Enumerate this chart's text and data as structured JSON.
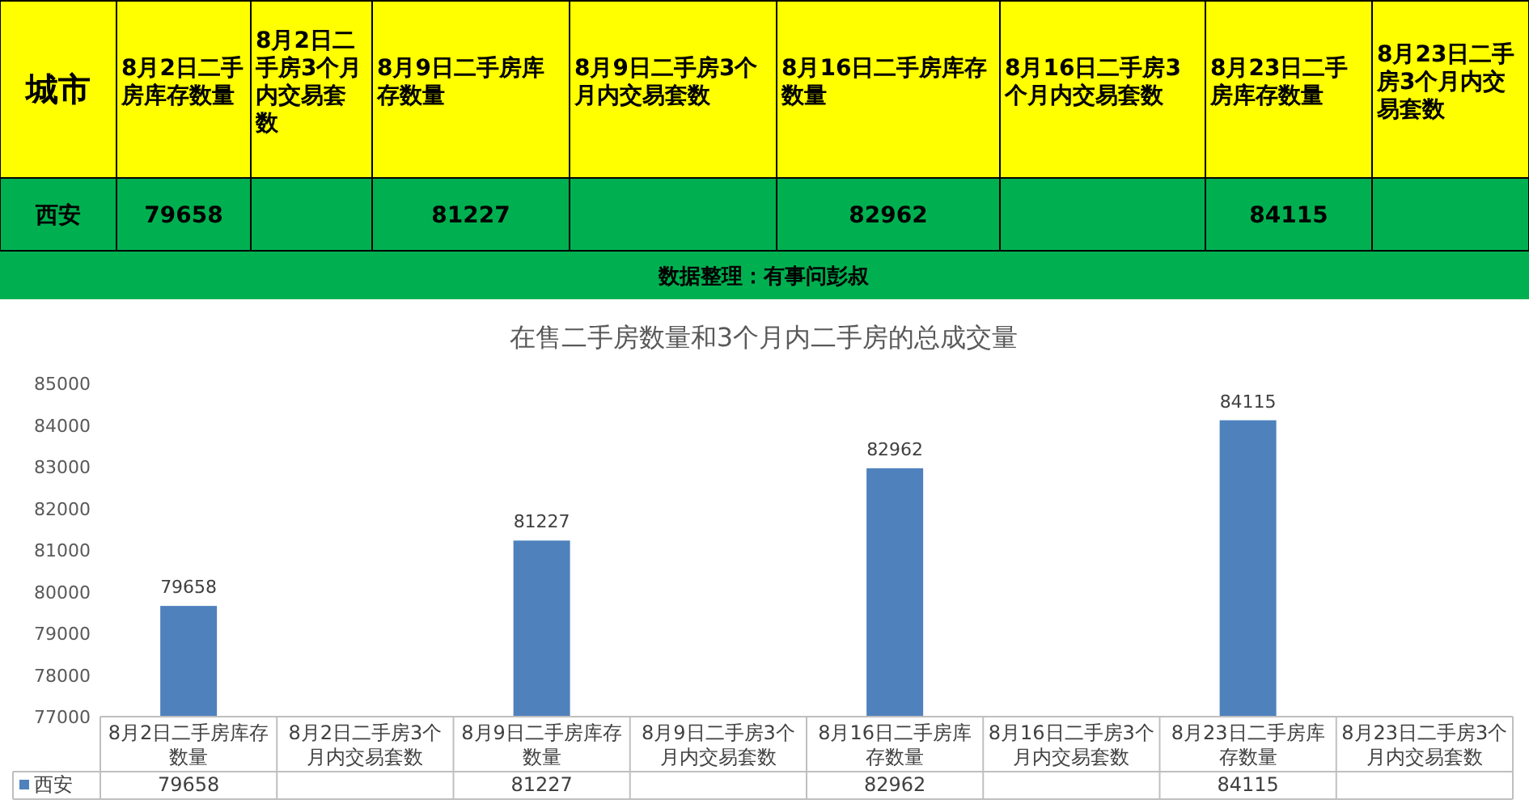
{
  "chart_data": [
    {
      "type": "other",
      "ylabel": "城市",
      "categories": [
        "8月2日二手房库存数量",
        "8月2日二手房3个月内交易套数",
        "8月9日二手房库存数量",
        "8月9日二手房3个月内交易套数",
        "8月16日二手房库存数量",
        "8月16日二手房3个月内交易套数",
        "8月23日二手房库存数量",
        "8月23日二手房3个月内交易套数"
      ],
      "y_categories": [
        "西安"
      ],
      "cell_labels": [
        [
          "79658",
          null,
          "81227",
          null,
          "82962",
          null,
          "84115",
          null
        ]
      ],
      "annotations": [
        "数据整理：有事问彭叔"
      ]
    },
    {
      "type": "bar",
      "title": "在售二手房数量和3个月内二手房的总成交量",
      "categories": [
        "8月2日二手房库存数量",
        "8月2日二手房3个月内交易套数",
        "8月9日二手房库存数量",
        "8月9日二手房3个月内交易套数",
        "8月16日二手房库存数量",
        "8月16日二手房3个月内交易套数",
        "8月23日二手房库存数量",
        "8月23日二手房3个月内交易套数"
      ],
      "series": [
        {
          "name": "西安",
          "color": "#4f81bd",
          "values": [
            79658,
            null,
            81227,
            null,
            82962,
            null,
            84115,
            null
          ],
          "value_labels": [
            "79658",
            null,
            "81227",
            null,
            "82962",
            null,
            "84115",
            null
          ]
        }
      ],
      "ylim": [
        77000,
        85000
      ],
      "yticks": [
        77000,
        78000,
        79000,
        80000,
        81000,
        82000,
        83000,
        84000,
        85000
      ],
      "data_labels": true,
      "grid": false,
      "legend": "bottom"
    }
  ]
}
